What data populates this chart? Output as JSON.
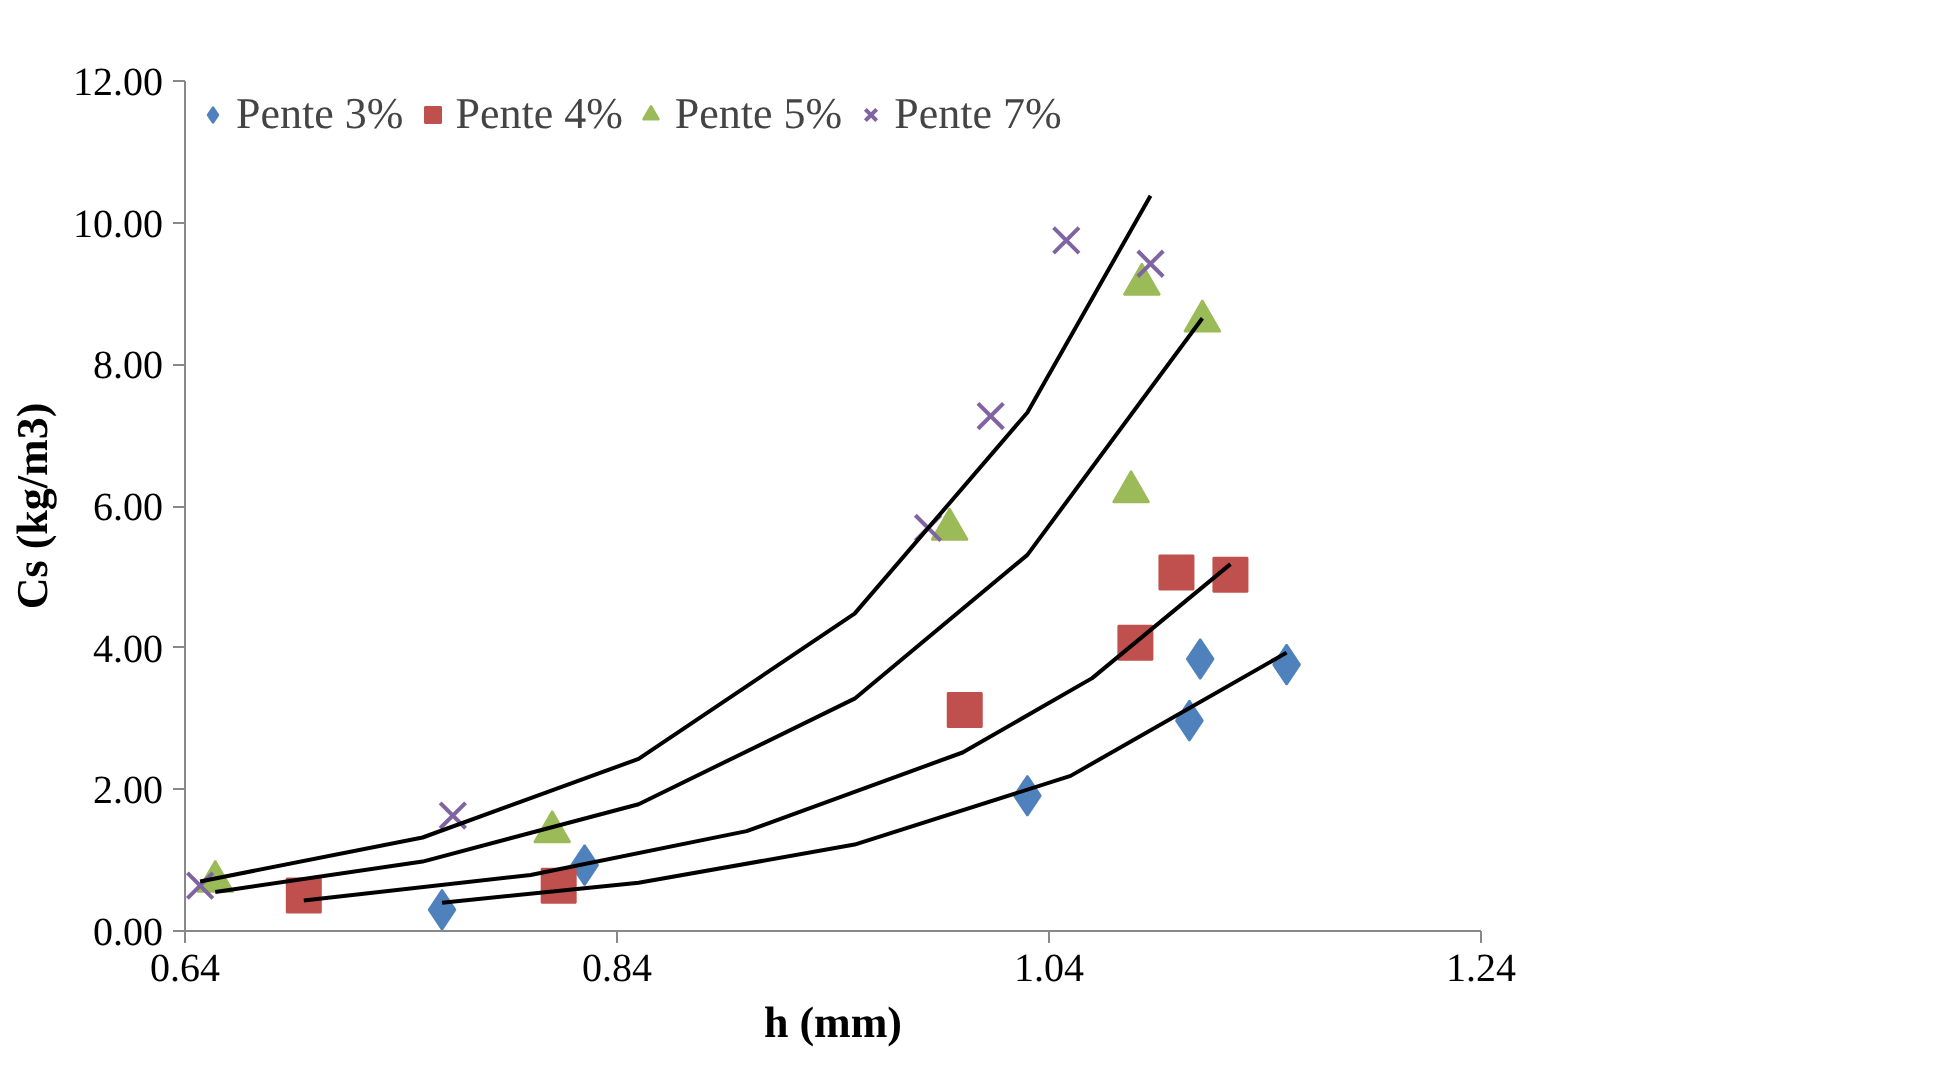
{
  "chart_data": {
    "type": "scatter",
    "xlabel": "h (mm)",
    "ylabel": "Cs (kg/m3)",
    "xlim": [
      0.64,
      1.24
    ],
    "xticks": [
      0.64,
      0.84,
      1.04,
      1.24
    ],
    "ylim": [
      0,
      12
    ],
    "yticks": [
      {
        "value": 0,
        "label": "0.00"
      },
      {
        "value": 2,
        "label": "2.00"
      },
      {
        "value": 4,
        "label": "4.00"
      },
      {
        "value": 6,
        "label": "6.00"
      },
      {
        "value": 8,
        "label": "8.00"
      },
      {
        "value": 10,
        "label": "10.00"
      },
      {
        "value": 12,
        "label": "12.00"
      }
    ],
    "grid": false,
    "legend": "top",
    "series": [
      {
        "name": "Pente 3%",
        "color": "#4f81bd",
        "marker": "diamond",
        "x": [
          0.759,
          0.825,
          1.03,
          1.105,
          1.11,
          1.15
        ],
        "values": [
          0.3,
          0.93,
          1.91,
          2.97,
          3.84,
          3.76
        ]
      },
      {
        "name": "Pente 4%",
        "color": "#c0504d",
        "marker": "square",
        "x": [
          0.695,
          0.813,
          1.001,
          1.08,
          1.099,
          1.124
        ],
        "values": [
          0.5,
          0.64,
          3.12,
          4.07,
          5.06,
          5.03
        ]
      },
      {
        "name": "Pente 5%",
        "color": "#9bbb59",
        "marker": "triangle",
        "x": [
          0.654,
          0.81,
          0.994,
          1.078,
          1.083,
          1.111
        ],
        "values": [
          0.7,
          1.4,
          5.67,
          6.2,
          9.13,
          8.61
        ]
      },
      {
        "name": "Pente 7%",
        "color": "#8064a2",
        "marker": "cross",
        "x": [
          0.647,
          0.764,
          0.984,
          1.013,
          1.048,
          1.087
        ],
        "values": [
          0.64,
          1.63,
          5.69,
          7.27,
          9.75,
          9.42
        ]
      },
      {
        "type": "line",
        "color": "#000000",
        "x": [
          0.759,
          0.85,
          0.95,
          1.05,
          1.15
        ],
        "values": [
          0.4,
          0.68,
          1.22,
          2.19,
          3.93
        ]
      },
      {
        "type": "line",
        "color": "#000000",
        "x": [
          0.695,
          0.8,
          0.9,
          1.0,
          1.06,
          1.124
        ],
        "values": [
          0.43,
          0.79,
          1.41,
          2.52,
          3.57,
          5.18
        ]
      },
      {
        "type": "line",
        "color": "#000000",
        "x": [
          0.654,
          0.75,
          0.85,
          0.95,
          1.03,
          1.111
        ],
        "values": [
          0.55,
          0.98,
          1.79,
          3.28,
          5.31,
          8.65
        ]
      },
      {
        "type": "line",
        "color": "#000000",
        "x": [
          0.647,
          0.75,
          0.85,
          0.95,
          1.03,
          1.087
        ],
        "values": [
          0.7,
          1.32,
          2.43,
          4.48,
          7.32,
          10.38
        ]
      }
    ]
  }
}
